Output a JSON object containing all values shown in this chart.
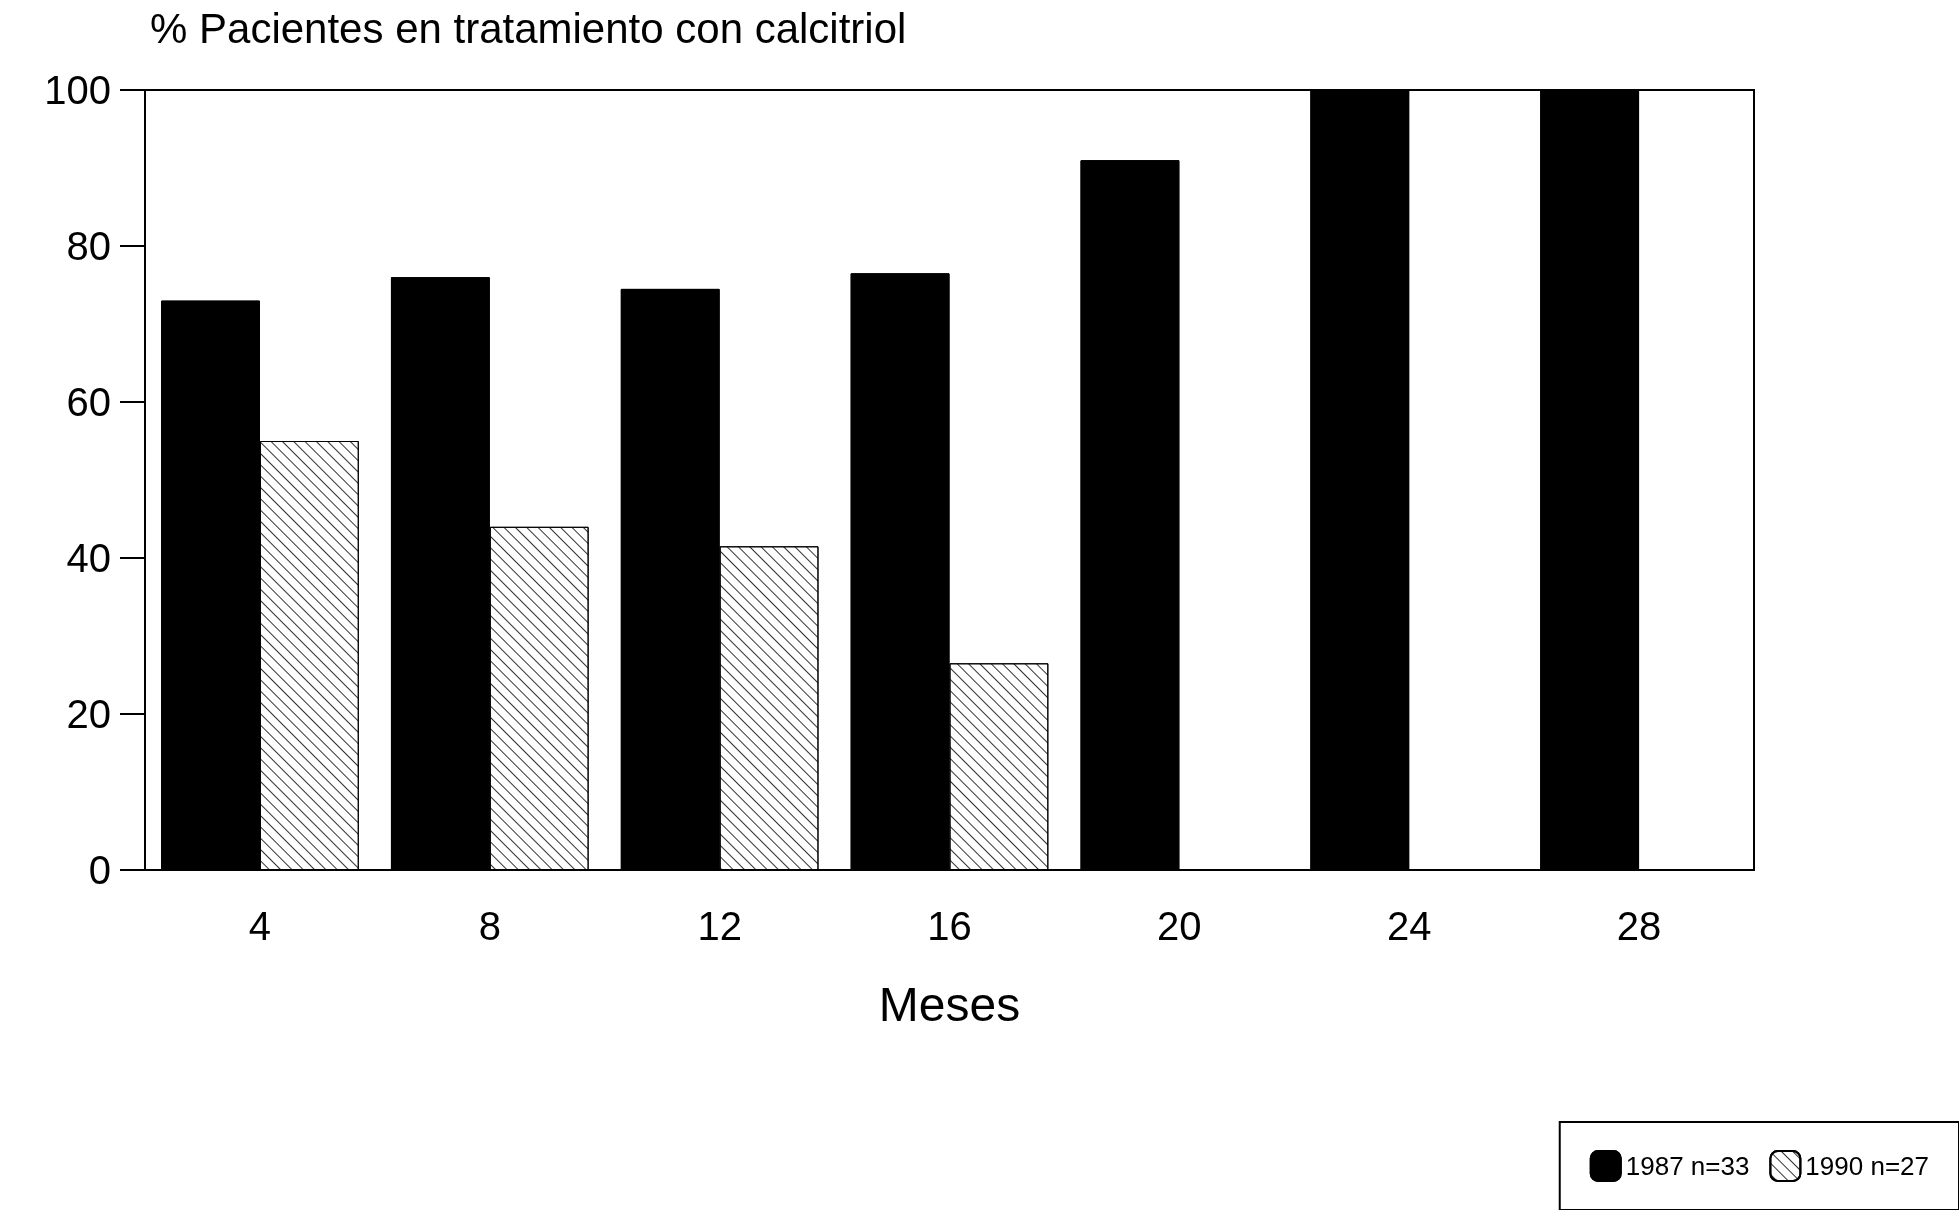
{
  "chart_data": {
    "type": "bar",
    "title": "% Pacientes en tratamiento con calcitriol",
    "xlabel": "Meses",
    "categories": [
      "4",
      "8",
      "12",
      "16",
      "20",
      "24",
      "28"
    ],
    "series": [
      {
        "name": "1987 n=33",
        "color": "#000000",
        "values": [
          73,
          76,
          74.5,
          76.5,
          91,
          100,
          100
        ]
      },
      {
        "name": "1990 n=27",
        "color": "#ffffff",
        "values": [
          55,
          44,
          41.5,
          26.5,
          null,
          null,
          null
        ]
      }
    ],
    "ylim": [
      0,
      100
    ],
    "yticks": [
      0,
      20,
      40,
      60,
      80,
      100
    ],
    "grid": false,
    "legend": "bottom right"
  }
}
